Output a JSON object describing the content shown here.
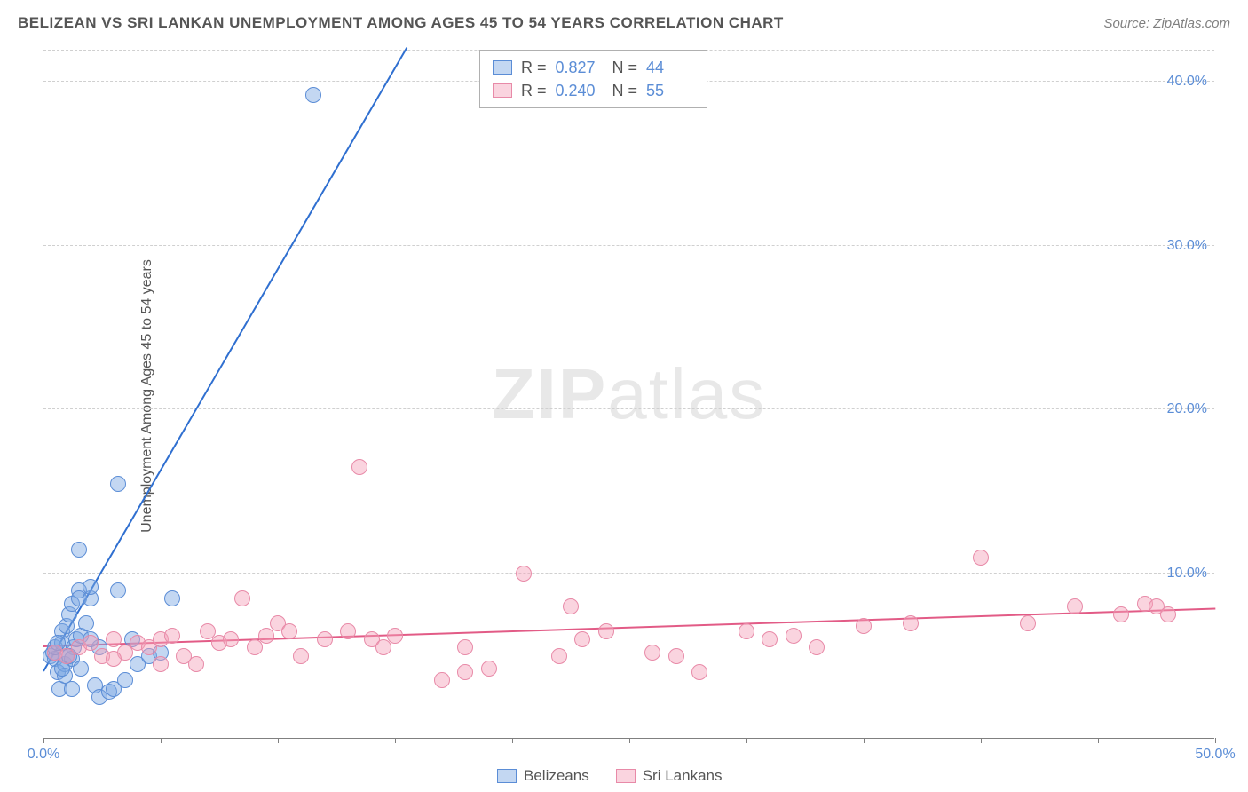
{
  "title": "BELIZEAN VS SRI LANKAN UNEMPLOYMENT AMONG AGES 45 TO 54 YEARS CORRELATION CHART",
  "source": "Source: ZipAtlas.com",
  "y_axis_label": "Unemployment Among Ages 45 to 54 years",
  "watermark": {
    "bold": "ZIP",
    "light": "atlas"
  },
  "chart": {
    "type": "scatter",
    "xlim": [
      0,
      50
    ],
    "ylim": [
      0,
      42
    ],
    "x_ticks": [
      0,
      5,
      10,
      15,
      20,
      25,
      30,
      35,
      40,
      45,
      50
    ],
    "x_tick_labels": {
      "0": "0.0%",
      "50": "50.0%"
    },
    "y_ticks": [
      10,
      20,
      30,
      40
    ],
    "y_tick_labels": {
      "10": "10.0%",
      "20": "20.0%",
      "30": "30.0%",
      "40": "40.0%"
    },
    "grid_color": "#d0d0d0",
    "axis_color": "#808080",
    "tick_label_color": "#5b8dd6",
    "point_radius": 9,
    "series": [
      {
        "name": "Belizeans",
        "fill": "rgba(121,167,227,0.45)",
        "stroke": "#5b8dd6",
        "line_color": "#2f6fd0",
        "r_value": "0.827",
        "n_value": "44",
        "trend": {
          "x1": 0,
          "y1": 4.0,
          "x2": 15.5,
          "y2": 42.0
        },
        "points": [
          [
            0.3,
            5.0
          ],
          [
            0.4,
            5.2
          ],
          [
            0.5,
            4.8
          ],
          [
            0.5,
            5.5
          ],
          [
            0.6,
            4.0
          ],
          [
            0.7,
            3.0
          ],
          [
            0.8,
            5.8
          ],
          [
            0.8,
            6.5
          ],
          [
            0.9,
            4.5
          ],
          [
            1.0,
            6.8
          ],
          [
            1.0,
            5.0
          ],
          [
            1.1,
            7.5
          ],
          [
            1.2,
            3.0
          ],
          [
            1.2,
            8.2
          ],
          [
            1.3,
            5.5
          ],
          [
            1.4,
            6.0
          ],
          [
            1.5,
            9.0
          ],
          [
            1.5,
            8.5
          ],
          [
            1.6,
            6.2
          ],
          [
            1.8,
            7.0
          ],
          [
            2.0,
            8.5
          ],
          [
            2.0,
            9.2
          ],
          [
            2.2,
            3.2
          ],
          [
            2.4,
            2.5
          ],
          [
            2.4,
            5.5
          ],
          [
            2.8,
            2.8
          ],
          [
            3.0,
            3.0
          ],
          [
            3.2,
            9.0
          ],
          [
            3.5,
            3.5
          ],
          [
            3.8,
            6.0
          ],
          [
            4.0,
            4.5
          ],
          [
            4.5,
            5.0
          ],
          [
            5.0,
            5.2
          ],
          [
            5.5,
            8.5
          ],
          [
            1.5,
            11.5
          ],
          [
            3.2,
            15.5
          ],
          [
            1.2,
            4.8
          ],
          [
            0.9,
            3.8
          ],
          [
            1.6,
            4.2
          ],
          [
            2.0,
            6.0
          ],
          [
            11.5,
            39.2
          ],
          [
            1.1,
            5.0
          ],
          [
            0.6,
            5.8
          ],
          [
            0.8,
            4.2
          ]
        ]
      },
      {
        "name": "Sri Lankans",
        "fill": "rgba(244,160,185,0.45)",
        "stroke": "#e88aa8",
        "line_color": "#e25b86",
        "r_value": "0.240",
        "n_value": "55",
        "trend": {
          "x1": 0,
          "y1": 5.5,
          "x2": 50,
          "y2": 7.8
        },
        "points": [
          [
            0.5,
            5.2
          ],
          [
            1.0,
            5.0
          ],
          [
            1.5,
            5.5
          ],
          [
            2.0,
            5.8
          ],
          [
            2.5,
            5.0
          ],
          [
            3.0,
            6.0
          ],
          [
            3.5,
            5.2
          ],
          [
            4.0,
            5.8
          ],
          [
            4.5,
            5.5
          ],
          [
            5.0,
            6.0
          ],
          [
            5.5,
            6.2
          ],
          [
            6.0,
            5.0
          ],
          [
            6.5,
            4.5
          ],
          [
            7.0,
            6.5
          ],
          [
            7.5,
            5.8
          ],
          [
            8.0,
            6.0
          ],
          [
            8.5,
            8.5
          ],
          [
            9.0,
            5.5
          ],
          [
            9.5,
            6.2
          ],
          [
            10.0,
            7.0
          ],
          [
            10.5,
            6.5
          ],
          [
            11.0,
            5.0
          ],
          [
            12.0,
            6.0
          ],
          [
            13.0,
            6.5
          ],
          [
            13.5,
            16.5
          ],
          [
            14.0,
            6.0
          ],
          [
            14.5,
            5.5
          ],
          [
            15.0,
            6.2
          ],
          [
            17.0,
            3.5
          ],
          [
            18.0,
            4.0
          ],
          [
            18.0,
            5.5
          ],
          [
            19.0,
            4.2
          ],
          [
            20.5,
            10.0
          ],
          [
            22.0,
            5.0
          ],
          [
            22.5,
            8.0
          ],
          [
            23.0,
            6.0
          ],
          [
            24.0,
            6.5
          ],
          [
            26.0,
            5.2
          ],
          [
            27.0,
            5.0
          ],
          [
            28.0,
            4.0
          ],
          [
            30.0,
            6.5
          ],
          [
            31.0,
            6.0
          ],
          [
            32.0,
            6.2
          ],
          [
            33.0,
            5.5
          ],
          [
            35.0,
            6.8
          ],
          [
            37.0,
            7.0
          ],
          [
            40.0,
            11.0
          ],
          [
            42.0,
            7.0
          ],
          [
            44.0,
            8.0
          ],
          [
            46.0,
            7.5
          ],
          [
            47.0,
            8.2
          ],
          [
            47.5,
            8.0
          ],
          [
            48.0,
            7.5
          ],
          [
            3.0,
            4.8
          ],
          [
            5.0,
            4.5
          ]
        ]
      }
    ]
  },
  "stats_box": {
    "r_label": "R  =",
    "n_label": "N  ="
  },
  "bottom_legend": [
    {
      "label": "Belizeans",
      "series": 0
    },
    {
      "label": "Sri Lankans",
      "series": 1
    }
  ]
}
